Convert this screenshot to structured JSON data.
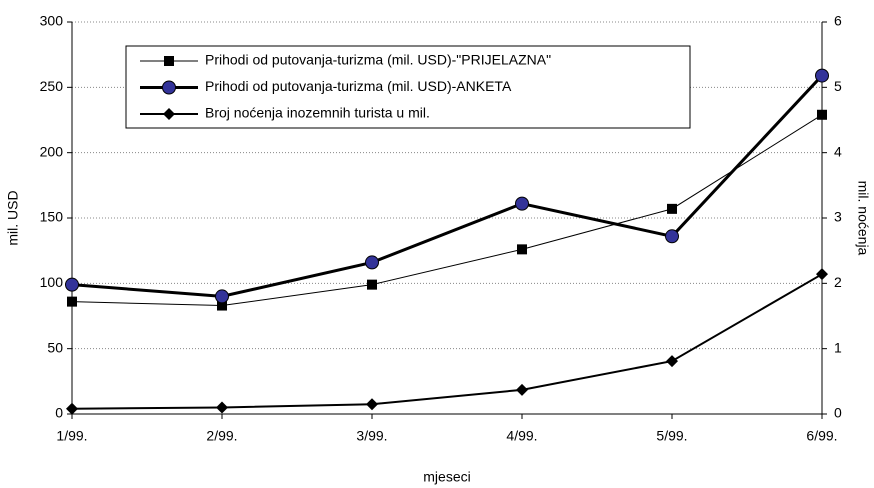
{
  "chart_data": {
    "type": "line",
    "categories": [
      "1/99.",
      "2/99.",
      "3/99.",
      "4/99.",
      "5/99.",
      "6/99."
    ],
    "series": [
      {
        "name": "Prihodi od putovanja-turizma (mil. USD)-\"PRIJELAZNA\"",
        "color": "#000000",
        "marker": "square",
        "line_width": 1,
        "values": [
          86,
          83,
          99,
          126,
          157,
          229
        ]
      },
      {
        "name": "Prihodi od putovanja-turizma (mil. USD)-ANKETA",
        "color": "#000000",
        "marker_color": "#333399",
        "marker": "circle",
        "line_width": 3,
        "values": [
          99,
          90,
          116,
          161,
          136,
          259
        ]
      },
      {
        "name": "Broj noćenja inozemnih turista u mil.",
        "color": "#000000",
        "marker": "diamond",
        "line_width": 2,
        "axis": "y2",
        "values": [
          0.08,
          0.1,
          0.15,
          0.37,
          0.81,
          2.14
        ]
      }
    ],
    "xlabel": "mjeseci",
    "ylabel": "mil. USD",
    "y2label": "mil. noćenja",
    "ylim": [
      0,
      300
    ],
    "yticks": [
      0,
      50,
      100,
      150,
      200,
      250,
      300
    ],
    "y2lim": [
      0,
      6
    ],
    "y2ticks": [
      0,
      1,
      2,
      3,
      4,
      5,
      6
    ],
    "grid": true,
    "legend": "upper left"
  }
}
